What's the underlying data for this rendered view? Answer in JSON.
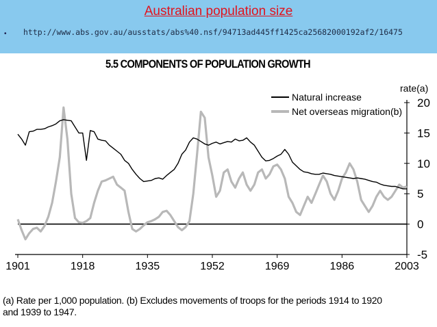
{
  "slide": {
    "title": "Australian population size",
    "bullet": "•",
    "url": "http://www.abs.gov.au/ausstats/abs%40.nsf/94713ad445ff1425ca25682000192af2/16475"
  },
  "chart_data": {
    "type": "line",
    "title": "5.5 COMPONENTS OF POPULATION GROWTH",
    "ylabel": "rate(a)",
    "xlabel": "",
    "xlim": [
      1901,
      2003
    ],
    "ylim": [
      -5,
      20
    ],
    "x_ticks": [
      1901,
      1918,
      1935,
      1952,
      1969,
      1986,
      2003
    ],
    "y_ticks": [
      -5,
      0,
      5,
      10,
      15,
      20
    ],
    "legend_position": "top-right",
    "grid": false,
    "series": [
      {
        "name": "Natural increase",
        "color": "#000000",
        "points": [
          [
            1901,
            14.8
          ],
          [
            1902,
            14.0
          ],
          [
            1903,
            13.0
          ],
          [
            1904,
            15.2
          ],
          [
            1905,
            15.3
          ],
          [
            1906,
            15.6
          ],
          [
            1907,
            15.6
          ],
          [
            1908,
            15.7
          ],
          [
            1909,
            16.0
          ],
          [
            1910,
            16.2
          ],
          [
            1911,
            16.5
          ],
          [
            1912,
            17.0
          ],
          [
            1913,
            17.2
          ],
          [
            1914,
            17.1
          ],
          [
            1915,
            17.0
          ],
          [
            1916,
            16.0
          ],
          [
            1917,
            15.0
          ],
          [
            1918,
            15.0
          ],
          [
            1919,
            10.5
          ],
          [
            1920,
            15.4
          ],
          [
            1921,
            15.2
          ],
          [
            1922,
            14.0
          ],
          [
            1923,
            13.8
          ],
          [
            1924,
            13.7
          ],
          [
            1925,
            13.0
          ],
          [
            1926,
            12.5
          ],
          [
            1927,
            12.0
          ],
          [
            1928,
            11.5
          ],
          [
            1929,
            10.5
          ],
          [
            1930,
            10.0
          ],
          [
            1931,
            9.0
          ],
          [
            1932,
            8.2
          ],
          [
            1933,
            7.5
          ],
          [
            1934,
            7.0
          ],
          [
            1935,
            7.1
          ],
          [
            1936,
            7.2
          ],
          [
            1937,
            7.5
          ],
          [
            1938,
            7.6
          ],
          [
            1939,
            7.4
          ],
          [
            1940,
            8.0
          ],
          [
            1941,
            8.5
          ],
          [
            1942,
            9.0
          ],
          [
            1943,
            10.0
          ],
          [
            1944,
            11.5
          ],
          [
            1945,
            12.2
          ],
          [
            1946,
            13.5
          ],
          [
            1947,
            14.2
          ],
          [
            1948,
            14.0
          ],
          [
            1949,
            13.6
          ],
          [
            1950,
            13.2
          ],
          [
            1951,
            13.0
          ],
          [
            1952,
            13.3
          ],
          [
            1953,
            13.5
          ],
          [
            1954,
            13.2
          ],
          [
            1955,
            13.4
          ],
          [
            1956,
            13.6
          ],
          [
            1957,
            13.5
          ],
          [
            1958,
            14.0
          ],
          [
            1959,
            13.7
          ],
          [
            1960,
            13.8
          ],
          [
            1961,
            14.2
          ],
          [
            1962,
            13.5
          ],
          [
            1963,
            13.0
          ],
          [
            1964,
            12.0
          ],
          [
            1965,
            11.0
          ],
          [
            1966,
            10.4
          ],
          [
            1967,
            10.5
          ],
          [
            1968,
            10.8
          ],
          [
            1969,
            11.2
          ],
          [
            1970,
            11.5
          ],
          [
            1971,
            12.3
          ],
          [
            1972,
            11.5
          ],
          [
            1973,
            10.2
          ],
          [
            1974,
            9.6
          ],
          [
            1975,
            9.0
          ],
          [
            1976,
            8.6
          ],
          [
            1977,
            8.5
          ],
          [
            1978,
            8.3
          ],
          [
            1979,
            8.2
          ],
          [
            1980,
            8.2
          ],
          [
            1981,
            8.4
          ],
          [
            1982,
            8.3
          ],
          [
            1983,
            8.2
          ],
          [
            1984,
            8.0
          ],
          [
            1985,
            7.9
          ],
          [
            1986,
            7.8
          ],
          [
            1987,
            7.7
          ],
          [
            1988,
            7.6
          ],
          [
            1989,
            7.5
          ],
          [
            1990,
            7.6
          ],
          [
            1991,
            7.5
          ],
          [
            1992,
            7.4
          ],
          [
            1993,
            7.2
          ],
          [
            1994,
            7.0
          ],
          [
            1995,
            6.9
          ],
          [
            1996,
            6.6
          ],
          [
            1997,
            6.4
          ],
          [
            1998,
            6.3
          ],
          [
            1999,
            6.2
          ],
          [
            2000,
            6.2
          ],
          [
            2001,
            6.0
          ],
          [
            2002,
            5.8
          ],
          [
            2003,
            5.8
          ]
        ]
      },
      {
        "name": "Net overseas migration(b)",
        "color": "#b8b8b8",
        "points": [
          [
            1901,
            0.8
          ],
          [
            1902,
            -1.0
          ],
          [
            1903,
            -2.5
          ],
          [
            1904,
            -1.5
          ],
          [
            1905,
            -0.8
          ],
          [
            1906,
            -0.6
          ],
          [
            1907,
            -1.2
          ],
          [
            1908,
            -0.3
          ],
          [
            1909,
            1.2
          ],
          [
            1910,
            3.5
          ],
          [
            1911,
            7.0
          ],
          [
            1912,
            11.0
          ],
          [
            1913,
            19.2
          ],
          [
            1914,
            14.0
          ],
          [
            1915,
            5.0
          ],
          [
            1916,
            1.0
          ],
          [
            1917,
            0.3
          ],
          [
            1918,
            0.2
          ],
          [
            1919,
            0.5
          ],
          [
            1920,
            1.0
          ],
          [
            1921,
            3.5
          ],
          [
            1922,
            5.5
          ],
          [
            1923,
            7.0
          ],
          [
            1924,
            7.2
          ],
          [
            1925,
            7.5
          ],
          [
            1926,
            7.8
          ],
          [
            1927,
            6.5
          ],
          [
            1928,
            6.0
          ],
          [
            1929,
            5.5
          ],
          [
            1930,
            2.0
          ],
          [
            1931,
            -0.8
          ],
          [
            1932,
            -1.2
          ],
          [
            1933,
            -0.8
          ],
          [
            1934,
            -0.2
          ],
          [
            1935,
            0.3
          ],
          [
            1936,
            0.5
          ],
          [
            1937,
            0.8
          ],
          [
            1938,
            1.2
          ],
          [
            1939,
            2.0
          ],
          [
            1940,
            2.2
          ],
          [
            1941,
            1.5
          ],
          [
            1942,
            0.5
          ],
          [
            1943,
            -0.5
          ],
          [
            1944,
            -1.0
          ],
          [
            1945,
            -0.5
          ],
          [
            1946,
            0.5
          ],
          [
            1947,
            5.0
          ],
          [
            1948,
            11.5
          ],
          [
            1949,
            18.5
          ],
          [
            1950,
            17.5
          ],
          [
            1951,
            11.0
          ],
          [
            1952,
            8.0
          ],
          [
            1953,
            4.5
          ],
          [
            1954,
            5.5
          ],
          [
            1955,
            8.5
          ],
          [
            1956,
            9.0
          ],
          [
            1957,
            7.0
          ],
          [
            1958,
            6.0
          ],
          [
            1959,
            7.5
          ],
          [
            1960,
            8.5
          ],
          [
            1961,
            6.5
          ],
          [
            1962,
            5.5
          ],
          [
            1963,
            6.5
          ],
          [
            1964,
            8.5
          ],
          [
            1965,
            9.0
          ],
          [
            1966,
            7.5
          ],
          [
            1967,
            8.2
          ],
          [
            1968,
            9.5
          ],
          [
            1969,
            9.8
          ],
          [
            1970,
            9.0
          ],
          [
            1971,
            7.5
          ],
          [
            1972,
            4.5
          ],
          [
            1973,
            3.5
          ],
          [
            1974,
            2.0
          ],
          [
            1975,
            1.5
          ],
          [
            1976,
            3.0
          ],
          [
            1977,
            4.5
          ],
          [
            1978,
            3.5
          ],
          [
            1979,
            5.0
          ],
          [
            1980,
            6.5
          ],
          [
            1981,
            8.0
          ],
          [
            1982,
            7.0
          ],
          [
            1983,
            5.0
          ],
          [
            1984,
            4.0
          ],
          [
            1985,
            5.5
          ],
          [
            1986,
            7.5
          ],
          [
            1987,
            8.5
          ],
          [
            1988,
            10.0
          ],
          [
            1989,
            9.0
          ],
          [
            1990,
            7.0
          ],
          [
            1991,
            4.0
          ],
          [
            1992,
            3.0
          ],
          [
            1993,
            2.0
          ],
          [
            1994,
            3.0
          ],
          [
            1995,
            4.5
          ],
          [
            1996,
            5.5
          ],
          [
            1997,
            4.5
          ],
          [
            1998,
            4.0
          ],
          [
            1999,
            4.5
          ],
          [
            2000,
            5.5
          ],
          [
            2001,
            6.5
          ],
          [
            2002,
            6.0
          ],
          [
            2003,
            6.2
          ]
        ]
      }
    ],
    "footnote_line1": "(a) Rate per 1,000 population.  (b) Excludes movements of troops for the periods 1914 to 1920",
    "footnote_line2": "and 1939 to 1947."
  }
}
